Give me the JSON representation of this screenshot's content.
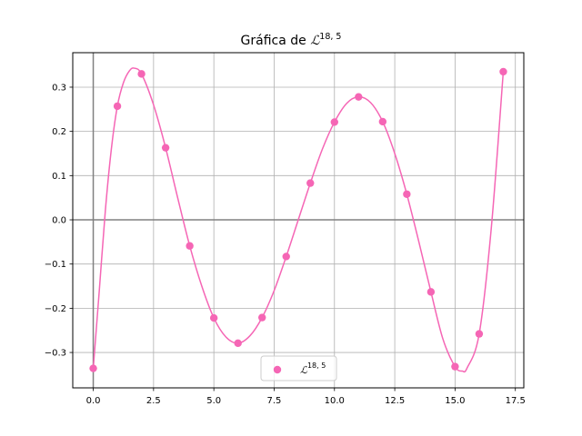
{
  "chart_data": {
    "type": "scatter",
    "title": "Gráfica de ",
    "title_math": {
      "base": "ℒ",
      "superscript": "18, 5"
    },
    "xlabel": "",
    "ylabel": "",
    "xlim": [
      -0.85,
      17.85
    ],
    "ylim": [
      -0.38,
      0.378
    ],
    "xticks": [
      0.0,
      2.5,
      5.0,
      7.5,
      10.0,
      12.5,
      15.0,
      17.5
    ],
    "xtick_labels": [
      "0.0",
      "2.5",
      "5.0",
      "7.5",
      "10.0",
      "12.5",
      "15.0",
      "17.5"
    ],
    "yticks": [
      -0.3,
      -0.2,
      -0.1,
      0.0,
      0.1,
      0.2,
      0.3
    ],
    "ytick_labels": [
      "−0.3",
      "−0.2",
      "−0.1",
      "0.0",
      "0.1",
      "0.2",
      "0.3"
    ],
    "grid": true,
    "legend_position": "lower center",
    "colors": {
      "series": "#f566b5",
      "axis_lines": "#808080",
      "grid": "#b0b0b0"
    },
    "series": [
      {
        "name": "ℒ",
        "name_superscript": "18, 5",
        "x": [
          0,
          1,
          2,
          3,
          4,
          5,
          6,
          7,
          8,
          9,
          10,
          11,
          12,
          13,
          14,
          15,
          16,
          17
        ],
        "y": [
          -0.336,
          0.257,
          0.33,
          0.163,
          -0.059,
          -0.222,
          -0.279,
          -0.221,
          -0.083,
          0.083,
          0.221,
          0.278,
          0.222,
          0.058,
          -0.163,
          -0.332,
          -0.258,
          0.335
        ]
      }
    ],
    "curve": {
      "x": [
        0,
        0.25,
        0.5,
        0.75,
        1,
        1.25,
        1.5,
        1.7,
        2,
        2.5,
        3,
        3.5,
        4,
        4.5,
        5,
        5.5,
        6,
        6.5,
        7,
        7.5,
        8,
        8.5,
        9,
        9.5,
        10,
        10.5,
        11,
        11.5,
        12,
        12.5,
        13,
        13.5,
        14,
        14.5,
        15,
        15.3,
        15.5,
        16,
        16.5,
        17
      ],
      "y": [
        -0.336,
        -0.16,
        0.02,
        0.16,
        0.257,
        0.31,
        0.337,
        0.343,
        0.33,
        0.26,
        0.163,
        0.05,
        -0.059,
        -0.15,
        -0.222,
        -0.265,
        -0.279,
        -0.262,
        -0.221,
        -0.16,
        -0.083,
        0.0,
        0.083,
        0.16,
        0.221,
        0.263,
        0.278,
        0.265,
        0.222,
        0.15,
        0.058,
        -0.05,
        -0.163,
        -0.27,
        -0.332,
        -0.342,
        -0.335,
        -0.258,
        -0.02,
        0.335
      ]
    }
  }
}
